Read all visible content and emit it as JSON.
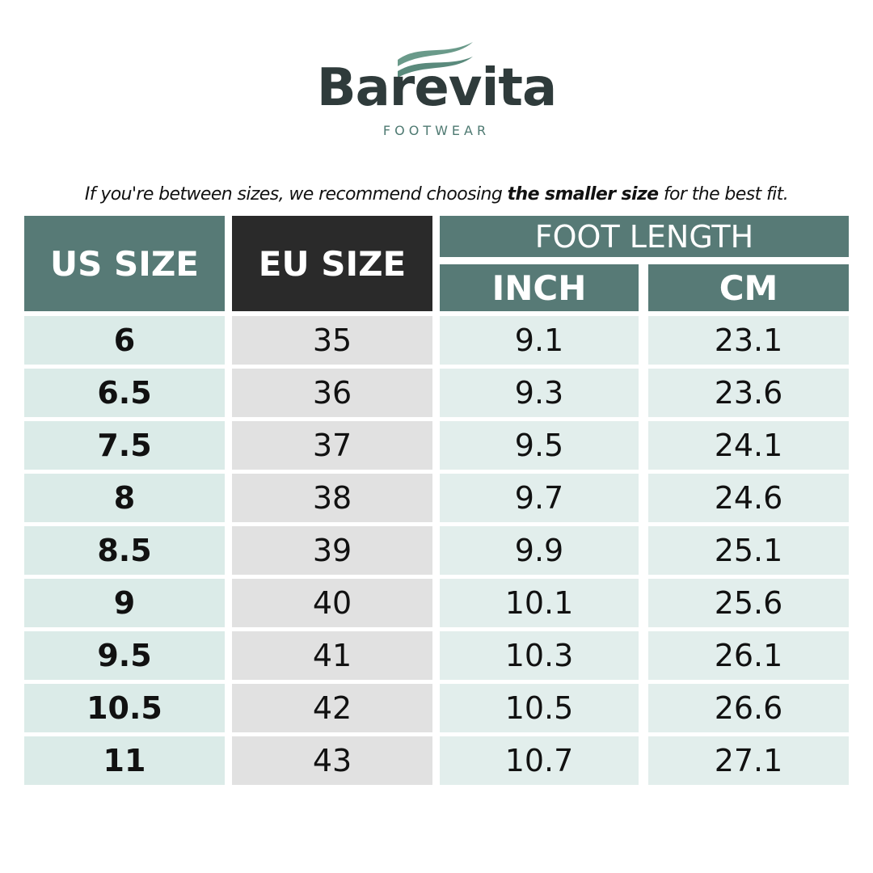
{
  "logo": {
    "brand": "Barevita",
    "tagline": "FOOTWEAR"
  },
  "note": {
    "before": "If you're between sizes, we recommend choosing ",
    "bold": "the smaller size",
    "after": " for the best fit."
  },
  "table": {
    "headers": {
      "us": "US SIZE",
      "eu": "EU SIZE",
      "group": "FOOT LENGTH",
      "inch": "INCH",
      "cm": "CM"
    },
    "rows": [
      [
        6,
        35,
        9.1,
        23.1
      ],
      [
        6.5,
        36,
        9.3,
        23.6
      ],
      [
        7.5,
        37,
        9.5,
        24.1
      ],
      [
        8,
        38,
        9.7,
        24.6
      ],
      [
        8.5,
        39,
        9.9,
        25.1
      ],
      [
        9,
        40,
        10.1,
        25.6
      ],
      [
        9.5,
        41,
        10.3,
        26.1
      ],
      [
        10.5,
        42,
        10.5,
        26.6
      ],
      [
        11,
        43,
        10.7,
        27.1
      ]
    ]
  }
}
